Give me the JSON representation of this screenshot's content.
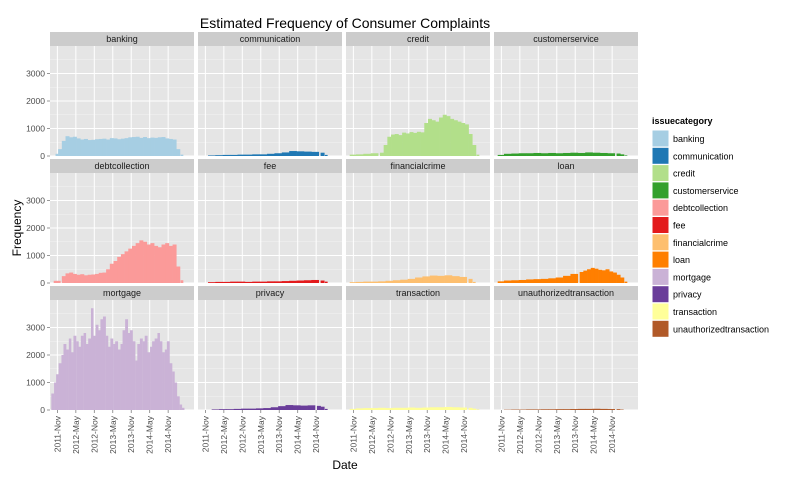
{
  "chart_data": {
    "type": "bar",
    "title": "Estimated Frequency of Consumer Complaints",
    "xlabel": "Date",
    "ylabel": "Frequency",
    "ylim": [
      0,
      4000
    ],
    "yticks": [
      0,
      1000,
      2000,
      3000
    ],
    "xlim": [
      2011.63,
      2015.53
    ],
    "xticks": [
      "2011-Nov",
      "2012-May",
      "2012-Nov",
      "2013-May",
      "2013-Nov",
      "2014-May",
      "2014-Nov"
    ],
    "legend": {
      "title": "issuecategory",
      "placement": "right"
    },
    "grid": true,
    "categories": [
      "banking",
      "communication",
      "credit",
      "customerservice",
      "debtcollection",
      "fee",
      "financialcrime",
      "loan",
      "mortgage",
      "privacy",
      "transaction",
      "unauthorizedtransaction"
    ],
    "series": [
      {
        "name": "banking",
        "color": "#A6CEE3",
        "x": [
          2011.82,
          2011.9,
          2012.0,
          2012.1,
          2012.2,
          2012.3,
          2012.4,
          2012.5,
          2012.6,
          2012.7,
          2012.8,
          2012.9,
          2013.0,
          2013.1,
          2013.2,
          2013.3,
          2013.4,
          2013.5,
          2013.6,
          2013.7,
          2013.8,
          2013.9,
          2014.0,
          2014.1,
          2014.2,
          2014.3,
          2014.4,
          2014.5,
          2014.6,
          2014.7,
          2014.8,
          2014.9,
          2015.0,
          2015.1,
          2015.2
        ],
        "values": [
          80,
          250,
          550,
          720,
          680,
          700,
          640,
          600,
          620,
          580,
          590,
          610,
          620,
          630,
          600,
          650,
          640,
          610,
          630,
          650,
          680,
          690,
          700,
          660,
          690,
          650,
          670,
          660,
          680,
          690,
          640,
          620,
          600,
          250,
          50
        ]
      },
      {
        "name": "communication",
        "color": "#1F78B4",
        "x": [
          2012.0,
          2012.2,
          2012.4,
          2012.6,
          2012.8,
          2013.0,
          2013.2,
          2013.4,
          2013.6,
          2013.8,
          2014.0,
          2014.2,
          2014.4,
          2014.6,
          2014.8,
          2015.0,
          2015.1
        ],
        "values": [
          20,
          30,
          40,
          40,
          50,
          50,
          60,
          60,
          80,
          100,
          130,
          180,
          170,
          160,
          150,
          120,
          40
        ]
      },
      {
        "name": "credit",
        "color": "#B2DF8A",
        "x": [
          2011.82,
          2012.0,
          2012.2,
          2012.4,
          2012.6,
          2012.7,
          2012.8,
          2012.9,
          2013.0,
          2013.1,
          2013.2,
          2013.3,
          2013.4,
          2013.5,
          2013.6,
          2013.7,
          2013.8,
          2013.9,
          2014.0,
          2014.1,
          2014.2,
          2014.3,
          2014.4,
          2014.5,
          2014.6,
          2014.7,
          2014.8,
          2014.9,
          2015.0,
          2015.1,
          2015.2
        ],
        "values": [
          50,
          60,
          80,
          100,
          120,
          400,
          700,
          780,
          800,
          760,
          850,
          820,
          870,
          840,
          880,
          860,
          1200,
          1350,
          1300,
          1250,
          1400,
          1500,
          1450,
          1350,
          1300,
          1250,
          1200,
          1150,
          800,
          400,
          50
        ]
      },
      {
        "name": "customerservice",
        "color": "#33A02C",
        "x": [
          2011.82,
          2012.0,
          2012.2,
          2012.4,
          2012.6,
          2012.8,
          2013.0,
          2013.2,
          2013.4,
          2013.6,
          2013.8,
          2014.0,
          2014.2,
          2014.4,
          2014.6,
          2014.8,
          2015.0,
          2015.1,
          2015.2
        ],
        "values": [
          40,
          80,
          90,
          100,
          100,
          110,
          100,
          110,
          100,
          110,
          120,
          110,
          130,
          120,
          110,
          100,
          90,
          60,
          20
        ]
      },
      {
        "name": "debtcollection",
        "color": "#FB9A99",
        "x": [
          2011.82,
          2012.0,
          2012.1,
          2012.2,
          2012.3,
          2012.4,
          2012.5,
          2012.6,
          2012.7,
          2012.8,
          2012.9,
          2013.0,
          2013.1,
          2013.2,
          2013.3,
          2013.4,
          2013.5,
          2013.6,
          2013.7,
          2013.8,
          2013.9,
          2014.0,
          2014.1,
          2014.2,
          2014.3,
          2014.4,
          2014.5,
          2014.6,
          2014.7,
          2014.8,
          2014.9,
          2015.0,
          2015.1,
          2015.2
        ],
        "values": [
          80,
          250,
          350,
          380,
          330,
          300,
          320,
          280,
          300,
          310,
          330,
          370,
          380,
          500,
          700,
          800,
          950,
          1050,
          1150,
          1250,
          1350,
          1450,
          1550,
          1500,
          1400,
          1450,
          1350,
          1300,
          1400,
          1450,
          1350,
          1400,
          600,
          100
        ]
      },
      {
        "name": "fee",
        "color": "#E31A1C",
        "x": [
          2012.0,
          2012.2,
          2012.4,
          2012.6,
          2012.8,
          2013.0,
          2013.2,
          2013.4,
          2013.6,
          2013.8,
          2014.0,
          2014.2,
          2014.4,
          2014.6,
          2014.8,
          2015.0,
          2015.1
        ],
        "values": [
          30,
          40,
          40,
          50,
          50,
          40,
          50,
          50,
          60,
          60,
          70,
          80,
          90,
          100,
          110,
          90,
          50
        ]
      },
      {
        "name": "financialcrime",
        "color": "#FDBF6F",
        "x": [
          2011.82,
          2012.0,
          2012.2,
          2012.4,
          2012.6,
          2012.8,
          2013.0,
          2013.2,
          2013.4,
          2013.6,
          2013.8,
          2014.0,
          2014.2,
          2014.4,
          2014.6,
          2014.8,
          2015.0,
          2015.1
        ],
        "values": [
          30,
          40,
          50,
          50,
          60,
          80,
          100,
          120,
          150,
          200,
          240,
          270,
          260,
          280,
          250,
          220,
          150,
          40
        ]
      },
      {
        "name": "loan",
        "color": "#FF7F00",
        "x": [
          2011.82,
          2012.0,
          2012.2,
          2012.4,
          2012.6,
          2012.8,
          2013.0,
          2013.2,
          2013.4,
          2013.6,
          2013.8,
          2014.0,
          2014.1,
          2014.2,
          2014.3,
          2014.4,
          2014.5,
          2014.6,
          2014.7,
          2014.8,
          2014.9,
          2015.0,
          2015.1,
          2015.2
        ],
        "values": [
          60,
          90,
          100,
          110,
          130,
          140,
          150,
          170,
          200,
          260,
          330,
          400,
          450,
          500,
          550,
          520,
          480,
          460,
          500,
          420,
          380,
          300,
          200,
          50
        ]
      },
      {
        "name": "mortgage",
        "color": "#CAB2D6",
        "x": [
          2011.7,
          2011.77,
          2011.83,
          2011.9,
          2011.97,
          2012.03,
          2012.1,
          2012.17,
          2012.23,
          2012.3,
          2012.37,
          2012.43,
          2012.5,
          2012.57,
          2012.63,
          2012.7,
          2012.77,
          2012.83,
          2012.9,
          2012.97,
          2013.03,
          2013.1,
          2013.17,
          2013.23,
          2013.3,
          2013.37,
          2013.43,
          2013.5,
          2013.57,
          2013.63,
          2013.7,
          2013.77,
          2013.83,
          2013.9,
          2013.97,
          2014.03,
          2014.1,
          2014.17,
          2014.23,
          2014.3,
          2014.37,
          2014.43,
          2014.5,
          2014.57,
          2014.63,
          2014.7,
          2014.77,
          2014.83,
          2014.9,
          2014.97,
          2015.03,
          2015.1,
          2015.17,
          2015.23
        ],
        "values": [
          600,
          1000,
          1300,
          1700,
          2000,
          2400,
          2200,
          2600,
          2100,
          2700,
          2500,
          2300,
          2700,
          2800,
          2400,
          2600,
          3700,
          2700,
          3100,
          2900,
          3300,
          3400,
          2700,
          2300,
          2600,
          2400,
          2500,
          2200,
          2400,
          2900,
          3300,
          2800,
          2900,
          2500,
          1800,
          2400,
          2600,
          2500,
          2700,
          2100,
          2300,
          2500,
          2600,
          2800,
          2500,
          2100,
          2200,
          2500,
          1700,
          1400,
          1000,
          500,
          200,
          80
        ]
      },
      {
        "name": "privacy",
        "color": "#6A3D9A",
        "x": [
          2012.1,
          2012.3,
          2012.5,
          2012.7,
          2012.9,
          2013.1,
          2013.3,
          2013.5,
          2013.7,
          2013.9,
          2014.1,
          2014.3,
          2014.5,
          2014.7,
          2014.9,
          2015.0,
          2015.1
        ],
        "values": [
          20,
          30,
          30,
          40,
          50,
          50,
          60,
          70,
          100,
          140,
          180,
          170,
          160,
          170,
          150,
          120,
          40
        ]
      },
      {
        "name": "transaction",
        "color": "#FFFF99",
        "x": [
          2011.82,
          2012.0,
          2012.2,
          2012.4,
          2012.6,
          2012.8,
          2013.0,
          2013.2,
          2013.4,
          2013.6,
          2013.8,
          2014.0,
          2014.2,
          2014.4,
          2014.6,
          2014.8,
          2015.0,
          2015.1,
          2015.2
        ],
        "values": [
          40,
          60,
          70,
          70,
          80,
          70,
          80,
          80,
          90,
          80,
          90,
          100,
          100,
          110,
          100,
          90,
          80,
          50,
          20
        ]
      },
      {
        "name": "unauthorizedtransaction",
        "color": "#B15928",
        "x": [
          2012.0,
          2012.2,
          2012.4,
          2012.6,
          2012.8,
          2013.0,
          2013.2,
          2013.4,
          2013.6,
          2013.8,
          2014.0,
          2014.2,
          2014.4,
          2014.6,
          2014.8,
          2015.0,
          2015.1
        ],
        "values": [
          10,
          15,
          15,
          20,
          20,
          25,
          25,
          30,
          30,
          35,
          40,
          40,
          45,
          40,
          35,
          30,
          15
        ]
      }
    ]
  }
}
